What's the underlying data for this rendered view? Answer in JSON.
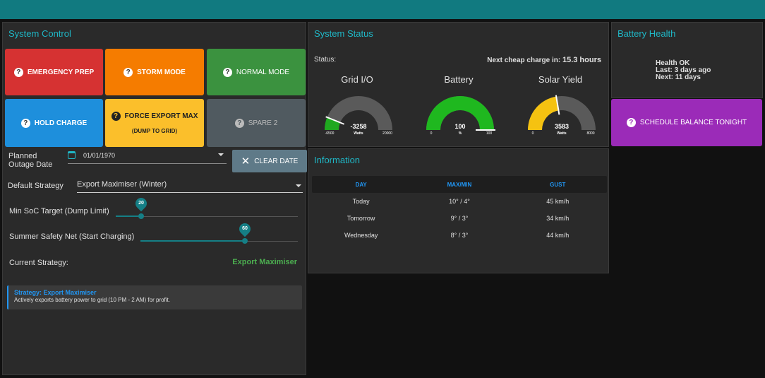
{
  "colors": {
    "accent": "#1fb7c6",
    "header": "#117a80",
    "strategy_active": "#4caf50"
  },
  "system_control": {
    "title": "System Control",
    "buttons": {
      "emergency_prep": "EMERGENCY PREP",
      "storm_mode": "STORM MODE",
      "normal_mode": "NORMAL MODE",
      "hold_charge": "HOLD CHARGE",
      "force_export_max": "FORCE EXPORT MAX",
      "force_export_sub": "(DUMP TO GRID)",
      "spare_2": "SPARE 2",
      "help_icon": "?"
    },
    "planned_outage_label": "Planned Outage Date",
    "planned_outage_value": "01/01/1970",
    "clear_date_label": "CLEAR DATE",
    "default_strategy_label": "Default Strategy",
    "default_strategy_value": "Export Maximiser (Winter)",
    "min_soc_label": "Min SoC Target (Dump Limit)",
    "min_soc_value": 20,
    "summer_safety_label": "Summer Safety Net (Start Charging)",
    "summer_safety_value": 60,
    "current_strategy_label": "Current Strategy:",
    "current_strategy_value": "Export Maximiser",
    "info_title": "Strategy: Export Maximiser",
    "info_desc": "Actively exports battery power to grid (10 PM - 2 AM) for profit."
  },
  "system_status": {
    "title": "System Status",
    "status_label": "Status:",
    "cheap_prefix": "Next cheap charge in:",
    "cheap_value": "15.3 hours",
    "gauges": [
      {
        "title": "Grid I/O",
        "value": "-3258",
        "unit": "Watts",
        "min": "-6500",
        "max": "20000",
        "min_num": -6500,
        "max_num": 20000,
        "num": -3258,
        "color": "#1fa81f"
      },
      {
        "title": "Battery",
        "value": "100",
        "unit": "%",
        "min": "0",
        "max": "100",
        "min_num": 0,
        "max_num": 100,
        "num": 100,
        "color": "#1fb81f"
      },
      {
        "title": "Solar Yield",
        "value": "3583",
        "unit": "Watts",
        "min": "0",
        "max": "8000",
        "min_num": 0,
        "max_num": 8000,
        "num": 3583,
        "color": "#f5c211"
      }
    ]
  },
  "battery_health": {
    "title": "Battery Health",
    "health": "Health OK",
    "last": "Last: 3 days ago",
    "next": "Next: 11 days",
    "schedule_button": "SCHEDULE BALANCE TONIGHT"
  },
  "information": {
    "title": "Information",
    "headers": [
      "DAY",
      "MAX/MIN",
      "GUST"
    ],
    "rows": [
      [
        "Today",
        "10° / 4°",
        "45 km/h"
      ],
      [
        "Tomorrow",
        "9° / 3°",
        "34 km/h"
      ],
      [
        "Wednesday",
        "8° / 3°",
        "44 km/h"
      ]
    ]
  }
}
